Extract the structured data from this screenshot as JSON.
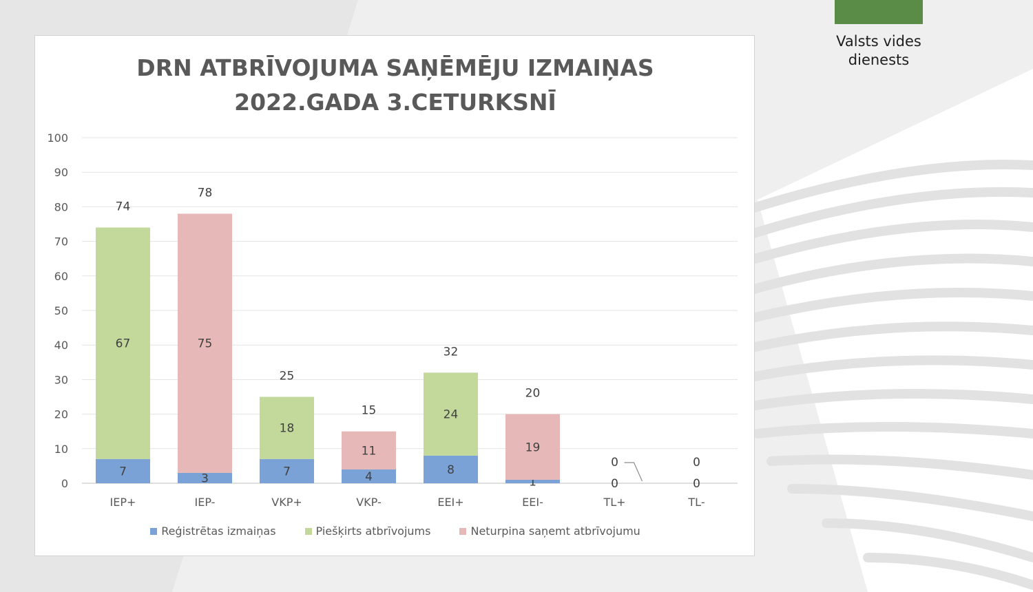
{
  "brand": {
    "name_line1": "Valsts vides",
    "name_line2": "dienests",
    "logo_color": "#5a8b47"
  },
  "chart_data": {
    "type": "bar",
    "stacked": true,
    "title_line1": "DRN ATBRĪVOJUMA SAŅĒMĒJU IZMAIŅAS",
    "title_line2": "2022.GADA 3.CETURKSNĪ",
    "categories": [
      "IEP+",
      "IEP-",
      "VKP+",
      "VKP-",
      "EEI+",
      "EEI-",
      "TL+",
      "TL-"
    ],
    "series": [
      {
        "name": "Reģistrētas izmaiņas",
        "color": "#7ba2d6",
        "values": [
          7,
          3,
          7,
          4,
          8,
          1,
          0,
          0
        ]
      },
      {
        "name": "Piešķirts atbrīvojums",
        "color": "#c3d99b",
        "values": [
          67,
          null,
          18,
          null,
          24,
          null,
          null,
          null
        ]
      },
      {
        "name": "Neturpina saņemt atbrīvojumu",
        "color": "#e7b8b8",
        "values": [
          null,
          75,
          null,
          11,
          null,
          19,
          null,
          null
        ]
      }
    ],
    "totals": [
      74,
      78,
      25,
      15,
      32,
      20,
      0,
      0
    ],
    "ylim": [
      0,
      100
    ],
    "yticks": [
      0,
      10,
      20,
      30,
      40,
      50,
      60,
      70,
      80,
      90,
      100
    ],
    "grid": true,
    "legend_position": "bottom"
  }
}
